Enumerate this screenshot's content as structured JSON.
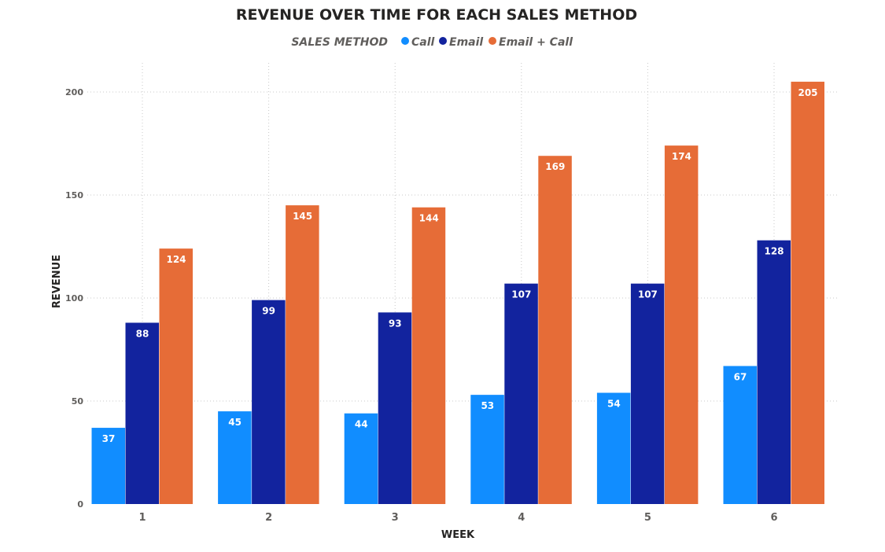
{
  "chart_data": {
    "type": "bar",
    "title": "REVENUE OVER TIME FOR EACH SALES METHOD",
    "legend_title": "SALES METHOD",
    "legend_position": "top-center",
    "xlabel": "WEEK",
    "ylabel": "REVENUE",
    "categories": [
      "1",
      "2",
      "3",
      "4",
      "5",
      "6"
    ],
    "series": [
      {
        "name": "Call",
        "color": "#118DFF",
        "values": [
          37,
          45,
          44,
          53,
          54,
          67
        ]
      },
      {
        "name": "Email",
        "color": "#12239E",
        "values": [
          88,
          99,
          93,
          107,
          107,
          128
        ]
      },
      {
        "name": "Email + Call",
        "color": "#E66C37",
        "values": [
          124,
          145,
          144,
          169,
          174,
          205
        ]
      }
    ],
    "ylim": [
      0,
      210
    ],
    "yticks": [
      "0",
      "50",
      "100",
      "150",
      "200"
    ],
    "grid": true
  }
}
